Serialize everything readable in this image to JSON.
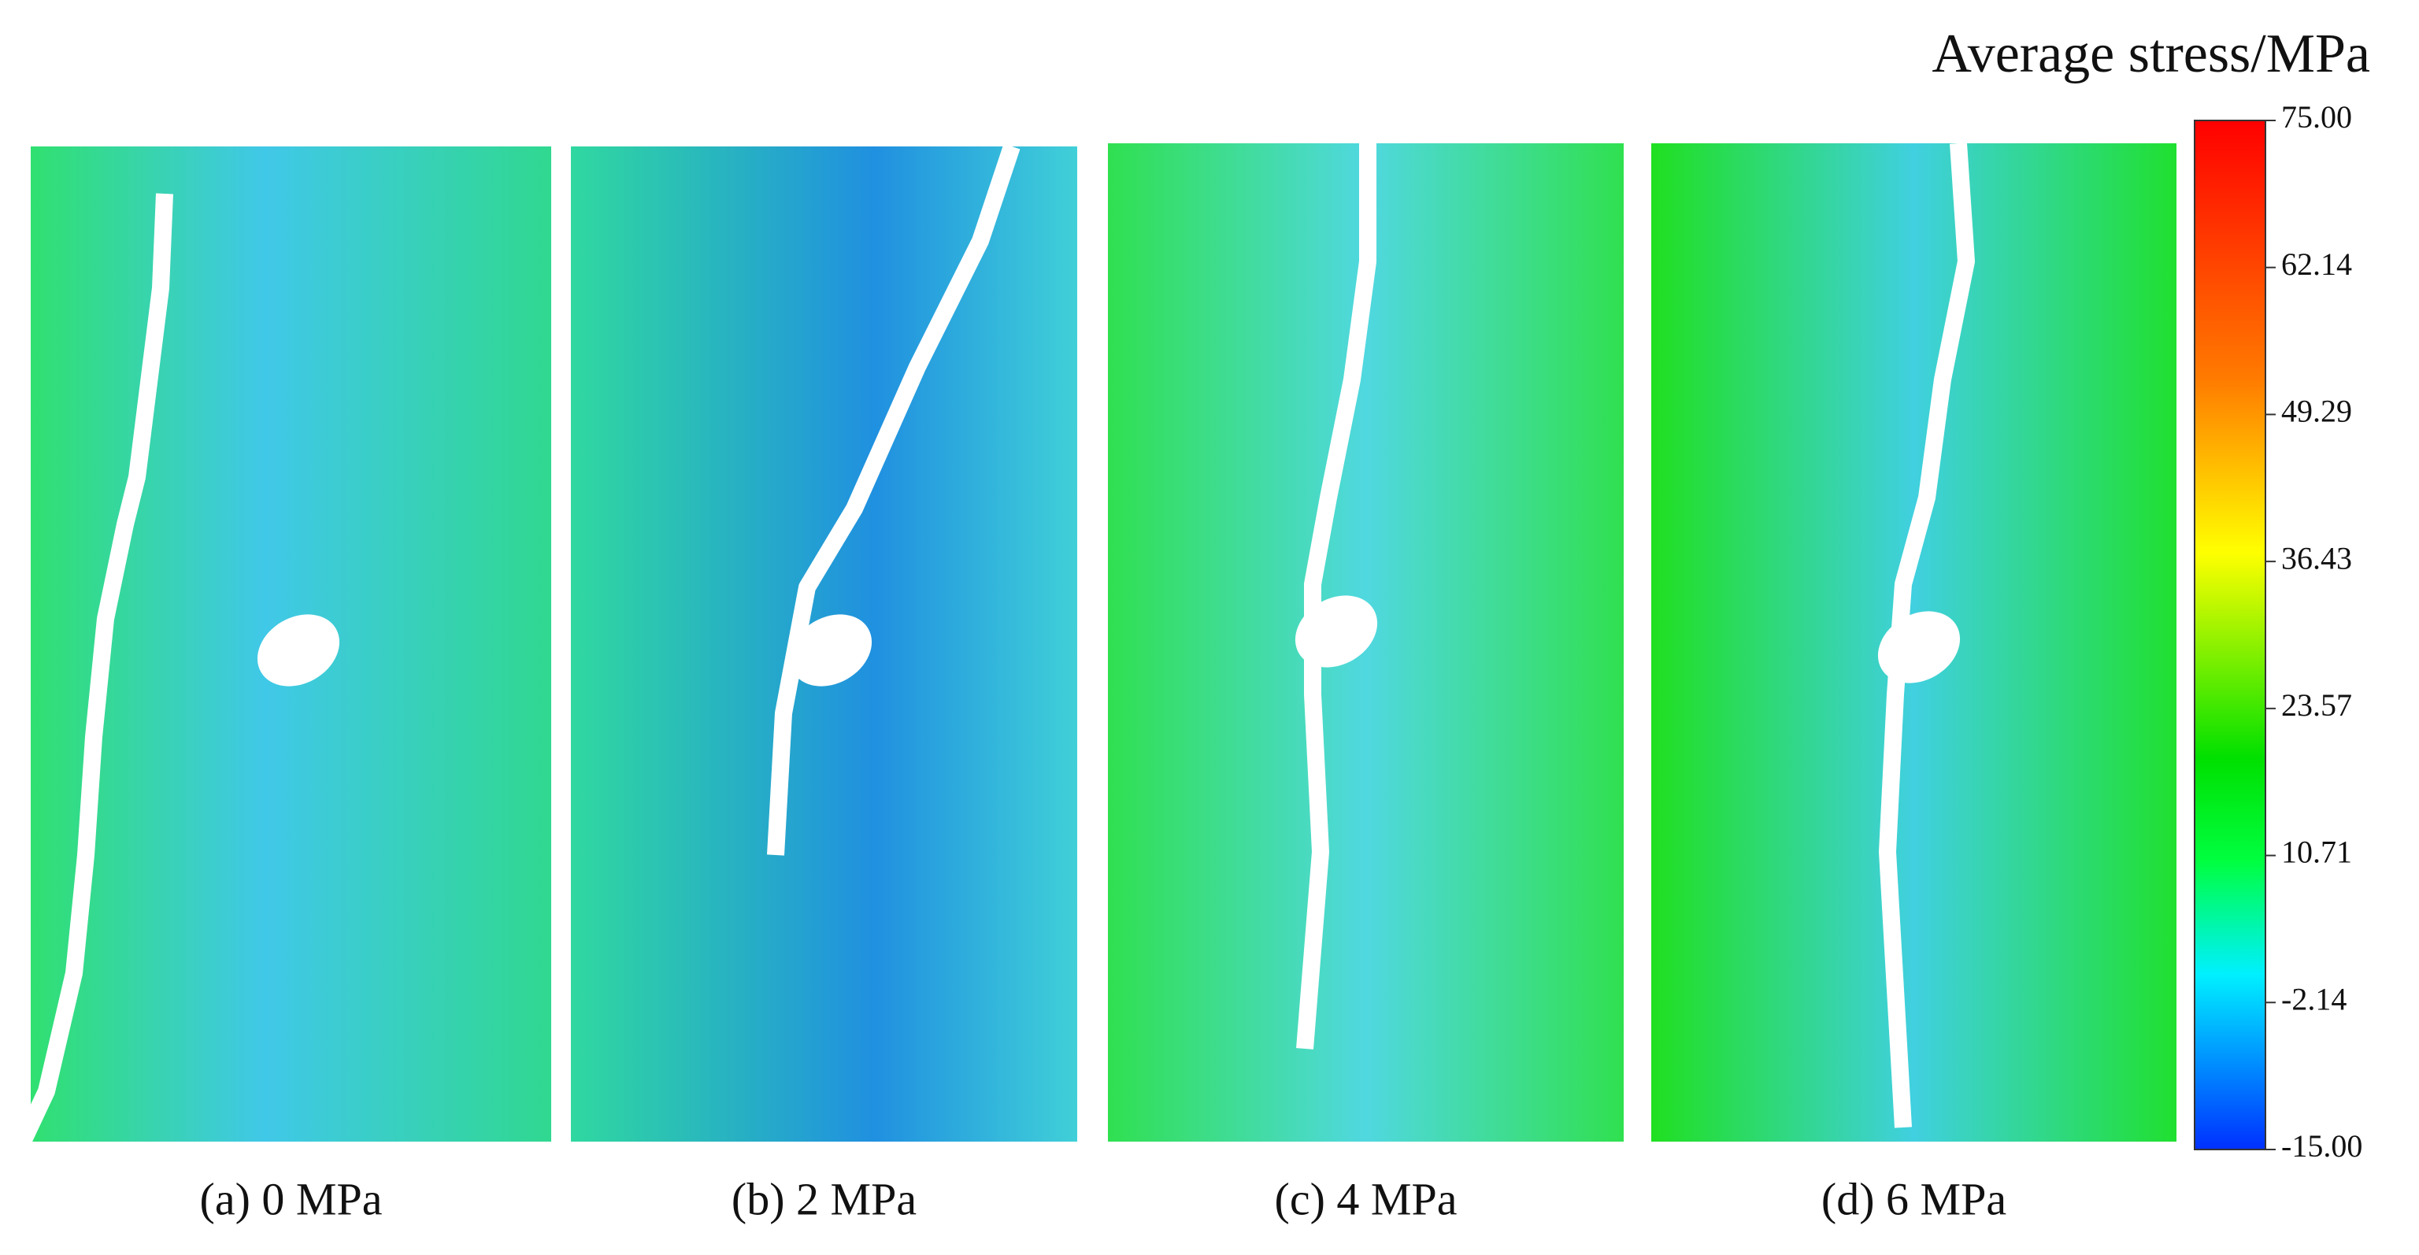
{
  "colorbar": {
    "title": "Average stress/MPa",
    "ticks": [
      "75.00",
      "62.14",
      "49.29",
      "36.43",
      "23.57",
      "10.71",
      "-2.14",
      "-15.00"
    ]
  },
  "panels": [
    {
      "caption": "(a)  0 MPa"
    },
    {
      "caption": "(b)  2 MPa"
    },
    {
      "caption": "(c)  4 MPa"
    },
    {
      "caption": "(d)  6 MPa"
    }
  ]
}
